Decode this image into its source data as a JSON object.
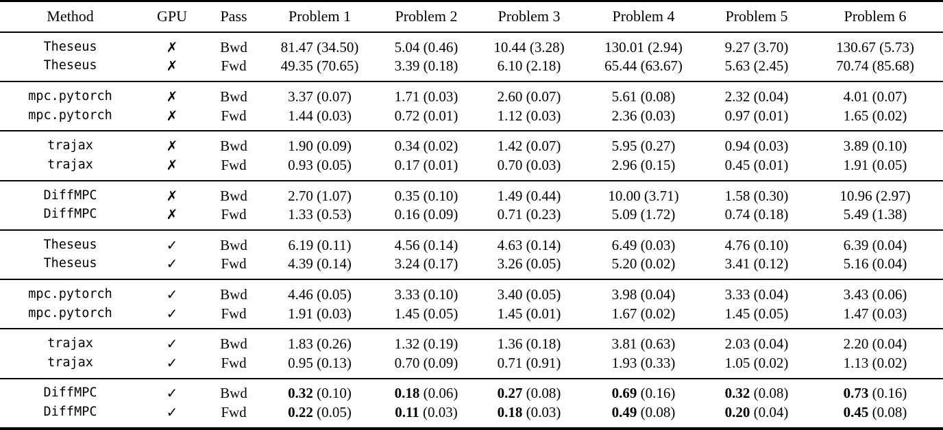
{
  "table": {
    "columns": [
      "Method",
      "GPU",
      "Pass",
      "Problem 1",
      "Problem 2",
      "Problem 3",
      "Problem 4",
      "Problem 5",
      "Problem 6"
    ],
    "gpu_symbols": {
      "no_gpu": "✗",
      "gpu": "✓"
    },
    "groups": [
      {
        "rows": [
          {
            "method": "Theseus",
            "gpu": "✗",
            "pass": "Bwd",
            "bold": false,
            "cells": [
              [
                "81.47",
                "34.50"
              ],
              [
                "5.04",
                "0.46"
              ],
              [
                "10.44",
                "3.28"
              ],
              [
                "130.01",
                "2.94"
              ],
              [
                "9.27",
                "3.70"
              ],
              [
                "130.67",
                "5.73"
              ]
            ]
          },
          {
            "method": "Theseus",
            "gpu": "✗",
            "pass": "Fwd",
            "bold": false,
            "cells": [
              [
                "49.35",
                "70.65"
              ],
              [
                "3.39",
                "0.18"
              ],
              [
                "6.10",
                "2.18"
              ],
              [
                "65.44",
                "63.67"
              ],
              [
                "5.63",
                "2.45"
              ],
              [
                "70.74",
                "85.68"
              ]
            ]
          }
        ]
      },
      {
        "rows": [
          {
            "method": "mpc.pytorch",
            "gpu": "✗",
            "pass": "Bwd",
            "bold": false,
            "cells": [
              [
                "3.37",
                "0.07"
              ],
              [
                "1.71",
                "0.03"
              ],
              [
                "2.60",
                "0.07"
              ],
              [
                "5.61",
                "0.08"
              ],
              [
                "2.32",
                "0.04"
              ],
              [
                "4.01",
                "0.07"
              ]
            ]
          },
          {
            "method": "mpc.pytorch",
            "gpu": "✗",
            "pass": "Fwd",
            "bold": false,
            "cells": [
              [
                "1.44",
                "0.03"
              ],
              [
                "0.72",
                "0.01"
              ],
              [
                "1.12",
                "0.03"
              ],
              [
                "2.36",
                "0.03"
              ],
              [
                "0.97",
                "0.01"
              ],
              [
                "1.65",
                "0.02"
              ]
            ]
          }
        ]
      },
      {
        "rows": [
          {
            "method": "trajax",
            "gpu": "✗",
            "pass": "Bwd",
            "bold": false,
            "cells": [
              [
                "1.90",
                "0.09"
              ],
              [
                "0.34",
                "0.02"
              ],
              [
                "1.42",
                "0.07"
              ],
              [
                "5.95",
                "0.27"
              ],
              [
                "0.94",
                "0.03"
              ],
              [
                "3.89",
                "0.10"
              ]
            ]
          },
          {
            "method": "trajax",
            "gpu": "✗",
            "pass": "Fwd",
            "bold": false,
            "cells": [
              [
                "0.93",
                "0.05"
              ],
              [
                "0.17",
                "0.01"
              ],
              [
                "0.70",
                "0.03"
              ],
              [
                "2.96",
                "0.15"
              ],
              [
                "0.45",
                "0.01"
              ],
              [
                "1.91",
                "0.05"
              ]
            ]
          }
        ]
      },
      {
        "rows": [
          {
            "method": "DiffMPC",
            "gpu": "✗",
            "pass": "Bwd",
            "bold": false,
            "cells": [
              [
                "2.70",
                "1.07"
              ],
              [
                "0.35",
                "0.10"
              ],
              [
                "1.49",
                "0.44"
              ],
              [
                "10.00",
                "3.71"
              ],
              [
                "1.58",
                "0.30"
              ],
              [
                "10.96",
                "2.97"
              ]
            ]
          },
          {
            "method": "DiffMPC",
            "gpu": "✗",
            "pass": "Fwd",
            "bold": false,
            "cells": [
              [
                "1.33",
                "0.53"
              ],
              [
                "0.16",
                "0.09"
              ],
              [
                "0.71",
                "0.23"
              ],
              [
                "5.09",
                "1.72"
              ],
              [
                "0.74",
                "0.18"
              ],
              [
                "5.49",
                "1.38"
              ]
            ]
          }
        ]
      },
      {
        "rows": [
          {
            "method": "Theseus",
            "gpu": "✓",
            "pass": "Bwd",
            "bold": false,
            "cells": [
              [
                "6.19",
                "0.11"
              ],
              [
                "4.56",
                "0.14"
              ],
              [
                "4.63",
                "0.14"
              ],
              [
                "6.49",
                "0.03"
              ],
              [
                "4.76",
                "0.10"
              ],
              [
                "6.39",
                "0.04"
              ]
            ]
          },
          {
            "method": "Theseus",
            "gpu": "✓",
            "pass": "Fwd",
            "bold": false,
            "cells": [
              [
                "4.39",
                "0.14"
              ],
              [
                "3.24",
                "0.17"
              ],
              [
                "3.26",
                "0.05"
              ],
              [
                "5.20",
                "0.02"
              ],
              [
                "3.41",
                "0.12"
              ],
              [
                "5.16",
                "0.04"
              ]
            ]
          }
        ]
      },
      {
        "rows": [
          {
            "method": "mpc.pytorch",
            "gpu": "✓",
            "pass": "Bwd",
            "bold": false,
            "cells": [
              [
                "4.46",
                "0.05"
              ],
              [
                "3.33",
                "0.10"
              ],
              [
                "3.40",
                "0.05"
              ],
              [
                "3.98",
                "0.04"
              ],
              [
                "3.33",
                "0.04"
              ],
              [
                "3.43",
                "0.06"
              ]
            ]
          },
          {
            "method": "mpc.pytorch",
            "gpu": "✓",
            "pass": "Fwd",
            "bold": false,
            "cells": [
              [
                "1.91",
                "0.03"
              ],
              [
                "1.45",
                "0.05"
              ],
              [
                "1.45",
                "0.01"
              ],
              [
                "1.67",
                "0.02"
              ],
              [
                "1.45",
                "0.05"
              ],
              [
                "1.47",
                "0.03"
              ]
            ]
          }
        ]
      },
      {
        "rows": [
          {
            "method": "trajax",
            "gpu": "✓",
            "pass": "Bwd",
            "bold": false,
            "cells": [
              [
                "1.83",
                "0.26"
              ],
              [
                "1.32",
                "0.19"
              ],
              [
                "1.36",
                "0.18"
              ],
              [
                "3.81",
                "0.63"
              ],
              [
                "2.03",
                "0.04"
              ],
              [
                "2.20",
                "0.04"
              ]
            ]
          },
          {
            "method": "trajax",
            "gpu": "✓",
            "pass": "Fwd",
            "bold": false,
            "cells": [
              [
                "0.95",
                "0.13"
              ],
              [
                "0.70",
                "0.09"
              ],
              [
                "0.71",
                "0.91"
              ],
              [
                "1.93",
                "0.33"
              ],
              [
                "1.05",
                "0.02"
              ],
              [
                "1.13",
                "0.02"
              ]
            ]
          }
        ]
      },
      {
        "rows": [
          {
            "method": "DiffMPC",
            "gpu": "✓",
            "pass": "Bwd",
            "bold": true,
            "cells": [
              [
                "0.32",
                "0.10"
              ],
              [
                "0.18",
                "0.06"
              ],
              [
                "0.27",
                "0.08"
              ],
              [
                "0.69",
                "0.16"
              ],
              [
                "0.32",
                "0.08"
              ],
              [
                "0.73",
                "0.16"
              ]
            ]
          },
          {
            "method": "DiffMPC",
            "gpu": "✓",
            "pass": "Fwd",
            "bold": true,
            "cells": [
              [
                "0.22",
                "0.05"
              ],
              [
                "0.11",
                "0.03"
              ],
              [
                "0.18",
                "0.03"
              ],
              [
                "0.49",
                "0.08"
              ],
              [
                "0.20",
                "0.04"
              ],
              [
                "0.45",
                "0.08"
              ]
            ]
          }
        ]
      }
    ]
  }
}
